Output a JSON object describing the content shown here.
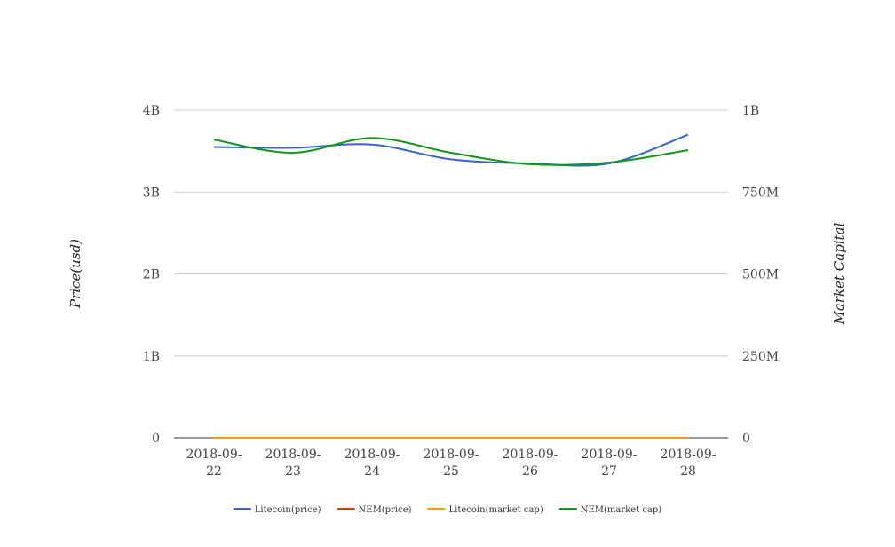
{
  "chart_data": {
    "type": "line",
    "x": [
      "2018-09-22",
      "2018-09-23",
      "2018-09-24",
      "2018-09-25",
      "2018-09-26",
      "2018-09-27",
      "2018-09-28"
    ],
    "x_tick_lines": [
      [
        "2018-09-",
        "22"
      ],
      [
        "2018-09-",
        "23"
      ],
      [
        "2018-09-",
        "24"
      ],
      [
        "2018-09-",
        "25"
      ],
      [
        "2018-09-",
        "26"
      ],
      [
        "2018-09-",
        "27"
      ],
      [
        "2018-09-",
        "28"
      ]
    ],
    "ylabel_left": "Price(usd)",
    "ylabel_right": "Market Capital",
    "y_left": {
      "min": 0,
      "max": 4000000000,
      "ticks": [
        0,
        1000000000,
        2000000000,
        3000000000,
        4000000000
      ],
      "tick_labels": [
        "0",
        "1B",
        "2B",
        "3B",
        "4B"
      ]
    },
    "y_right": {
      "min": 0,
      "max": 1000000000,
      "ticks": [
        0,
        250000000,
        500000000,
        750000000,
        1000000000
      ],
      "tick_labels": [
        "0",
        "250M",
        "500M",
        "750M",
        "1B"
      ]
    },
    "grid": true,
    "legend_position": "bottom",
    "series": [
      {
        "name": "Litecoin(price)",
        "axis": "left",
        "color": "#3366cc",
        "values": [
          3550000000,
          3540000000,
          3580000000,
          3400000000,
          3350000000,
          3350000000,
          3700000000
        ]
      },
      {
        "name": "NEM(price)",
        "axis": "left",
        "color": "#dc3912",
        "values": [
          0.1,
          0.1,
          0.1,
          0.1,
          0.1,
          0.1,
          0.1
        ]
      },
      {
        "name": "Litecoin(market cap)",
        "axis": "right",
        "color": "#ff9900",
        "values": [
          60,
          60,
          60,
          60,
          60,
          60,
          60
        ]
      },
      {
        "name": "NEM(market cap)",
        "axis": "right",
        "color": "#109618",
        "values": [
          910000000,
          870000000,
          915000000,
          870000000,
          835000000,
          840000000,
          878000000
        ]
      }
    ]
  }
}
